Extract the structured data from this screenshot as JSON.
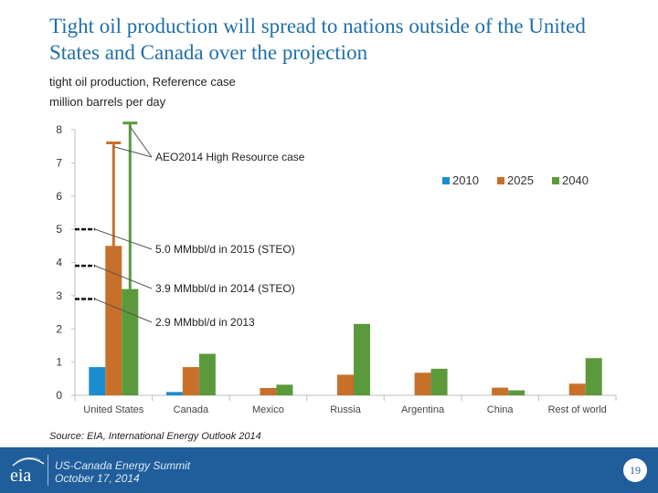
{
  "slide": {
    "title": "Tight oil production will spread to nations outside of the United States and Canada over the projection",
    "subtitle_line1": "tight oil production, Reference case",
    "subtitle_line2": "million barrels per day",
    "source": "Source:  EIA, International Energy Outlook 2014",
    "footer_line1": "US-Canada Energy Summit",
    "footer_line2": "October 17, 2014",
    "page_number": "19",
    "logo_text": "eia"
  },
  "colors": {
    "s2010": "#1a8dd0",
    "s2025": "#c8702a",
    "s2040": "#5b9a3c",
    "title": "#1f6fa8",
    "footer": "#1f5e9a"
  },
  "chart_data": {
    "type": "bar",
    "title": "",
    "xlabel": "",
    "ylabel": "million barrels per day",
    "ylim": [
      0,
      8
    ],
    "yticks": [
      0,
      1,
      2,
      3,
      4,
      5,
      6,
      7,
      8
    ],
    "grid": false,
    "legend_position": "top-right",
    "categories": [
      "United States",
      "Canada",
      "Mexico",
      "Russia",
      "Argentina",
      "China",
      "Rest of world"
    ],
    "series": [
      {
        "name": "2010",
        "values": [
          0.85,
          0.1,
          0,
          0,
          0,
          0,
          0
        ]
      },
      {
        "name": "2025",
        "values": [
          4.5,
          0.85,
          0.22,
          0.62,
          0.68,
          0.23,
          0.35
        ]
      },
      {
        "name": "2040",
        "values": [
          3.2,
          1.25,
          0.32,
          2.15,
          0.8,
          0.15,
          1.12
        ]
      }
    ],
    "high_resource_case": {
      "label": "AEO2014 High Resource case",
      "category": "United States",
      "values": {
        "2025": 7.6,
        "2040": 8.2
      }
    },
    "reference_markers": [
      {
        "value": 5.0,
        "label": "5.0 MMbbl/d in 2015 (STEO)"
      },
      {
        "value": 3.9,
        "label": "3.9 MMbbl/d in 2014 (STEO)"
      },
      {
        "value": 2.9,
        "label": "2.9 MMbbl/d in 2013"
      }
    ]
  }
}
